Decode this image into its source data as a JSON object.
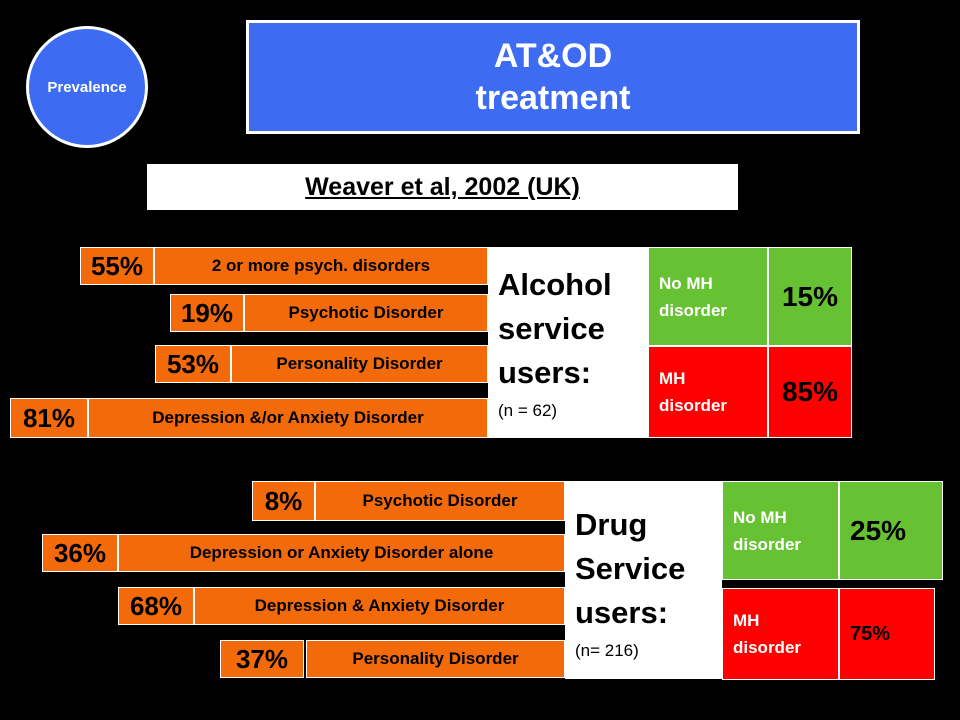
{
  "badge": "Prevalence",
  "title": {
    "line1": "AT&OD",
    "line2": "treatment"
  },
  "reference": "Weaver et al, 2002 (UK)",
  "alcohol": {
    "heading": [
      "Alcohol",
      "service",
      "users:"
    ],
    "n": "(n = 62)",
    "rows": [
      {
        "pct": "55%",
        "label": "2 or more psych. disorders"
      },
      {
        "pct": "19%",
        "label": "Psychotic Disorder"
      },
      {
        "pct": "53%",
        "label": "Personality Disorder"
      },
      {
        "pct": "81%",
        "label": "Depression &/or Anxiety Disorder"
      }
    ],
    "no_mh": {
      "label": [
        "No MH",
        "disorder"
      ],
      "pct": "15%"
    },
    "mh": {
      "label": [
        "MH",
        "disorder"
      ],
      "pct": "85%"
    }
  },
  "drug": {
    "heading": [
      "Drug",
      "Service",
      "users:"
    ],
    "n": "(n= 216)",
    "rows": [
      {
        "pct": "8%",
        "label": "Psychotic Disorder"
      },
      {
        "pct": "36%",
        "label": "Depression or Anxiety Disorder alone"
      },
      {
        "pct": "68%",
        "label": "Depression & Anxiety Disorder"
      },
      {
        "pct": "37%",
        "label": "Personality Disorder"
      }
    ],
    "no_mh": {
      "label": [
        "No MH",
        "disorder"
      ],
      "pct": "25%"
    },
    "mh": {
      "label": [
        "MH",
        "disorder"
      ],
      "pct": "75%"
    }
  },
  "colors": {
    "blue": "#3d6cf2",
    "orange": "#f26a0a",
    "green": "#67c233",
    "red": "#ff0000"
  }
}
